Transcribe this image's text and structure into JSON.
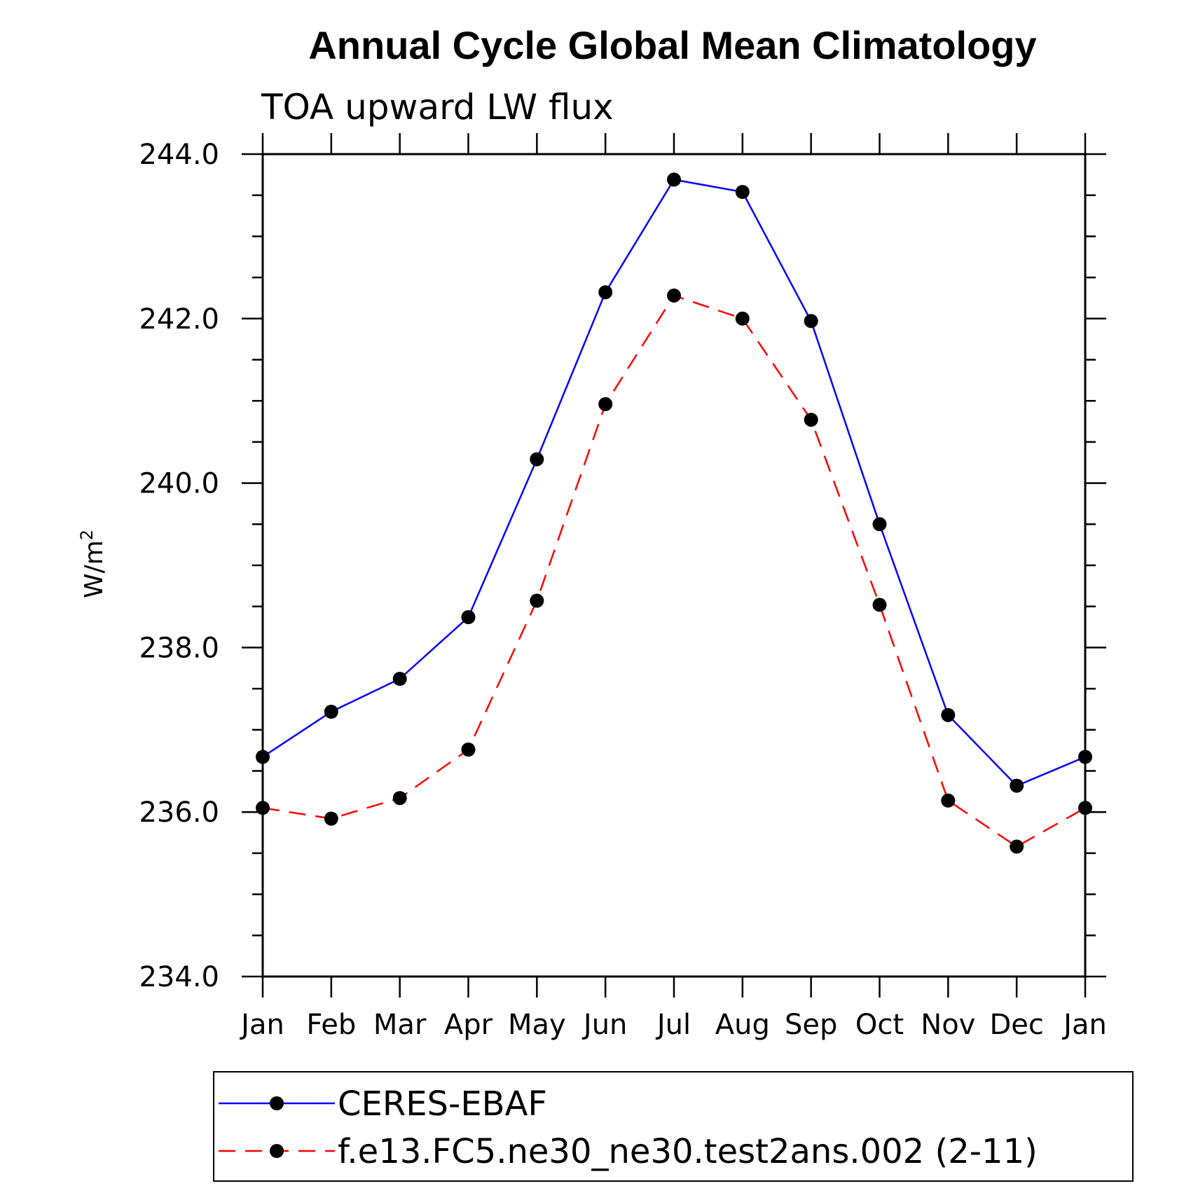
{
  "chart_data": {
    "type": "line",
    "title": "Annual Cycle Global Mean Climatology",
    "subtitle": "TOA upward LW flux",
    "xlabel": "",
    "ylabel": "W/m",
    "ylabel_superscript": "2",
    "ylim": [
      234.0,
      244.0
    ],
    "y_ticks": [
      "234.0",
      "236.0",
      "238.0",
      "240.0",
      "242.0",
      "244.0"
    ],
    "categories": [
      "Jan",
      "Feb",
      "Mar",
      "Apr",
      "May",
      "Jun",
      "Jul",
      "Aug",
      "Sep",
      "Oct",
      "Nov",
      "Dec",
      "Jan"
    ],
    "series": [
      {
        "name": "CERES-EBAF",
        "color": "#0000ff",
        "line_style": "solid",
        "marker": "filled-circle",
        "values": [
          236.67,
          237.22,
          237.62,
          238.37,
          240.29,
          242.32,
          243.69,
          243.54,
          241.97,
          239.5,
          237.18,
          236.32,
          236.67
        ]
      },
      {
        "name": "f.e13.FC5.ne30_ne30.test2ans.002 (2-11)",
        "color": "#ff0000",
        "line_style": "dashed",
        "marker": "filled-circle",
        "values": [
          236.05,
          235.92,
          236.17,
          236.76,
          238.57,
          240.96,
          242.28,
          242.0,
          240.77,
          238.52,
          236.14,
          235.58,
          236.05
        ]
      }
    ],
    "grid": false,
    "legend_position": "bottom"
  }
}
